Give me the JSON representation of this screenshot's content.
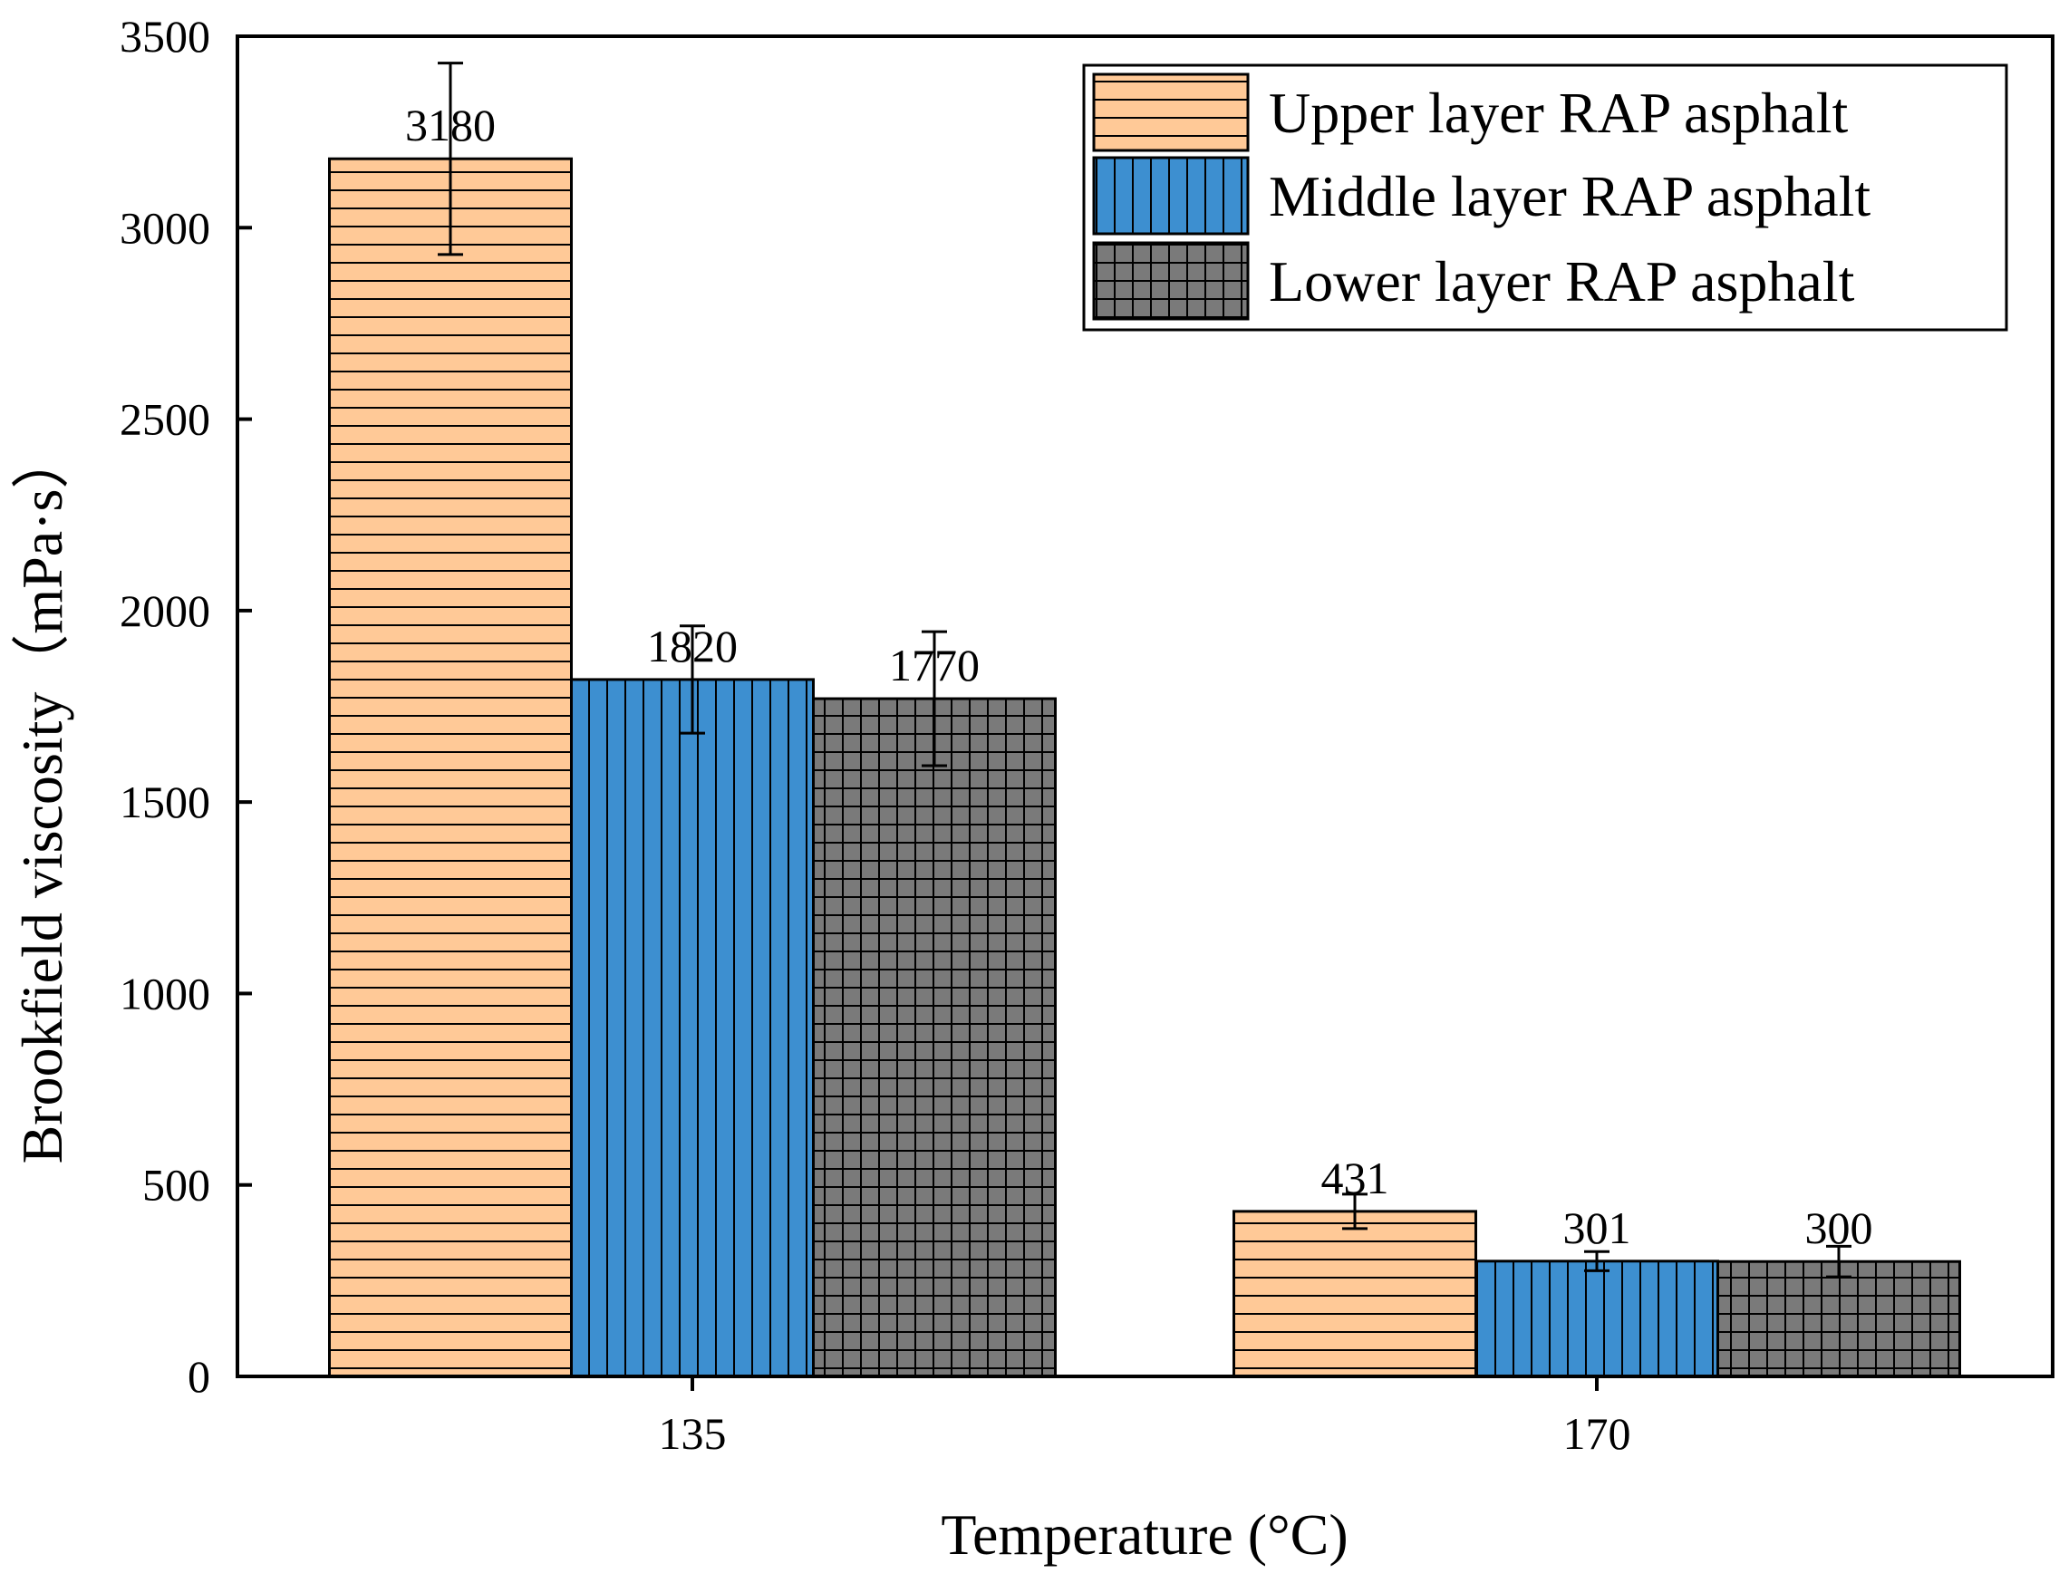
{
  "chart_data": {
    "type": "bar",
    "title": "",
    "xlabel": "Temperature (°C)",
    "ylabel": "Brookfield viscosity（mPa·s）",
    "ylim": [
      0,
      3500
    ],
    "yticks": [
      0,
      500,
      1000,
      1500,
      2000,
      2500,
      3000,
      3500
    ],
    "categories": [
      "135",
      "170"
    ],
    "legend_position": "top-right",
    "series": [
      {
        "name": "Upper layer RAP asphalt",
        "values": [
          3180,
          431
        ],
        "errors": [
          250,
          45
        ],
        "labels": [
          "3180",
          "431"
        ],
        "color": "#FFC997",
        "pattern": "horizontal-lines"
      },
      {
        "name": "Middle layer RAP asphalt",
        "values": [
          1820,
          301
        ],
        "errors": [
          140,
          25
        ],
        "labels": [
          "1820",
          "301"
        ],
        "color": "#3D8FD0",
        "pattern": "vertical-lines"
      },
      {
        "name": "Lower layer RAP asphalt",
        "values": [
          1770,
          300
        ],
        "errors": [
          175,
          40
        ],
        "labels": [
          "1770",
          "300"
        ],
        "color": "#7A7A7A",
        "pattern": "grid"
      }
    ]
  }
}
